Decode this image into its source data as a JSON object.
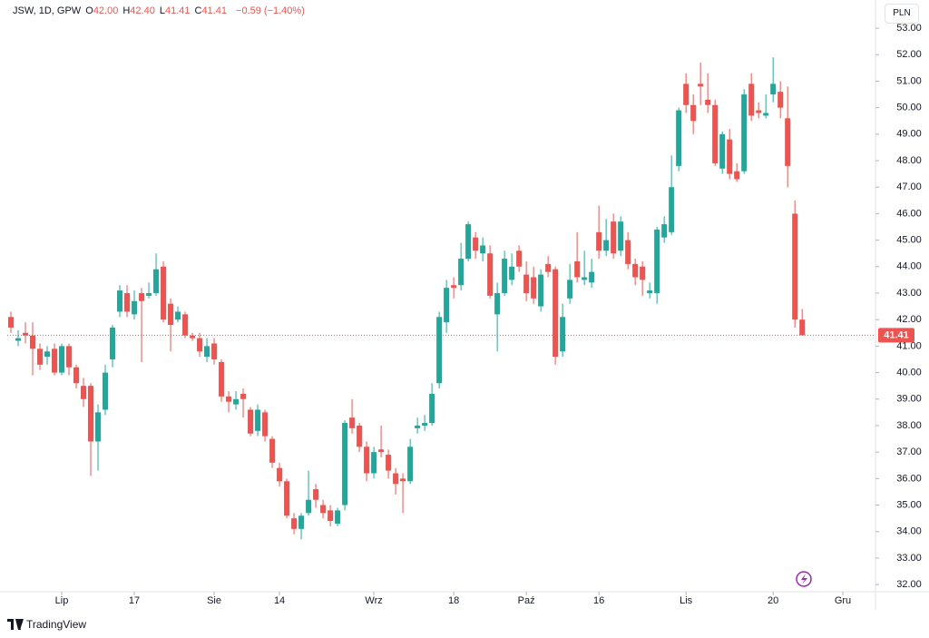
{
  "chart_data": {
    "type": "candlestick",
    "symbol": "JSW, 1D, GPW",
    "legend": [
      {
        "label": "O",
        "value": "42.00"
      },
      {
        "label": "H",
        "value": "42.40"
      },
      {
        "label": "L",
        "value": "41.41"
      },
      {
        "label": "C",
        "value": "41.41"
      }
    ],
    "change": "−0.59 (−1.40%)",
    "currency": "PLN",
    "brand": "TradingView",
    "up_color": "#26a69a",
    "down_color": "#ef5350",
    "open": [
      42.1,
      41.2,
      41.5,
      41.4,
      40.9,
      40.6,
      40.9,
      40.0,
      41.0,
      40.2,
      39.5,
      39.5,
      37.4,
      38.6,
      40.5,
      42.3,
      43.0,
      42.2,
      43.0,
      42.9,
      43.0,
      44.0,
      42.6,
      42.0,
      42.2,
      41.4,
      41.3,
      40.6,
      41.1,
      40.4,
      39.1,
      38.8,
      39.2,
      38.6,
      37.8,
      38.5,
      37.5,
      36.4,
      35.9,
      34.5,
      34.1,
      34.7,
      35.6,
      35.0,
      34.8,
      34.3,
      35.0,
      38.3,
      38.0,
      37.2,
      36.2,
      37.1,
      36.9,
      36.2,
      36.0,
      35.9,
      37.9,
      38.0,
      38.1,
      39.6,
      41.9,
      43.3,
      43.3,
      44.3,
      45.1,
      44.5,
      44.5,
      42.2,
      43.0,
      43.5,
      44.6,
      43.7,
      43.6,
      42.5,
      44.1,
      43.9,
      40.8,
      42.8,
      44.2,
      43.5,
      43.4,
      45.3,
      44.6,
      45.7,
      44.6,
      45.0,
      44.1,
      44.0,
      43.0,
      43.0,
      45.1,
      45.3,
      47.8,
      50.9,
      50.1,
      50.9,
      50.3,
      50.1,
      47.7,
      48.8,
      47.6,
      47.6,
      50.9,
      49.9,
      49.7,
      50.5,
      50.6,
      49.6,
      46.0,
      42.0
    ],
    "high": [
      42.3,
      41.6,
      41.9,
      41.9,
      41.1,
      41.0,
      41.1,
      41.1,
      41.1,
      40.3,
      39.8,
      39.6,
      38.8,
      40.3,
      41.8,
      43.3,
      43.3,
      43.1,
      43.2,
      43.4,
      44.5,
      44.2,
      42.8,
      42.5,
      42.3,
      41.5,
      41.5,
      41.3,
      41.3,
      40.5,
      39.3,
      39.3,
      39.4,
      38.7,
      38.8,
      38.6,
      37.6,
      36.6,
      36.0,
      34.7,
      34.7,
      36.3,
      35.8,
      35.2,
      35.0,
      34.9,
      38.2,
      39.0,
      38.1,
      37.4,
      37.2,
      38.0,
      37.1,
      36.4,
      36.2,
      37.5,
      38.3,
      38.4,
      39.6,
      42.3,
      43.5,
      43.6,
      44.9,
      45.7,
      45.3,
      45.1,
      44.8,
      43.4,
      44.6,
      44.5,
      44.8,
      44.2,
      44.0,
      43.9,
      44.4,
      44.0,
      42.6,
      44.1,
      45.3,
      44.6,
      44.3,
      46.3,
      45.8,
      46.0,
      45.9,
      45.3,
      44.3,
      44.2,
      43.4,
      45.5,
      45.9,
      48.2,
      50.0,
      51.3,
      50.5,
      51.7,
      51.3,
      50.3,
      49.1,
      49.2,
      47.9,
      50.7,
      51.3,
      50.2,
      50.5,
      51.9,
      51.0,
      50.8,
      46.5,
      42.4
    ],
    "low": [
      41.5,
      41.0,
      41.1,
      39.9,
      40.1,
      40.3,
      39.9,
      39.9,
      39.9,
      39.4,
      38.7,
      36.1,
      36.3,
      38.4,
      40.2,
      42.1,
      42.1,
      42.0,
      40.4,
      42.8,
      42.9,
      41.9,
      40.8,
      41.9,
      41.3,
      41.2,
      40.6,
      40.4,
      40.3,
      38.9,
      38.5,
      38.6,
      38.3,
      37.6,
      37.6,
      37.4,
      36.4,
      35.7,
      34.5,
      33.9,
      33.7,
      34.6,
      34.9,
      34.5,
      34.2,
      34.2,
      34.8,
      37.7,
      37.0,
      35.9,
      36.0,
      36.8,
      36.0,
      35.4,
      34.7,
      35.8,
      37.7,
      37.8,
      38.0,
      39.4,
      41.5,
      42.8,
      43.1,
      44.2,
      44.3,
      44.2,
      42.8,
      40.8,
      42.9,
      43.3,
      43.8,
      42.7,
      42.6,
      42.3,
      43.6,
      40.3,
      40.6,
      42.6,
      43.4,
      43.3,
      43.2,
      44.3,
      44.4,
      44.3,
      44.4,
      43.9,
      43.3,
      42.9,
      42.8,
      42.6,
      44.9,
      45.2,
      47.6,
      49.8,
      49.0,
      50.1,
      49.8,
      47.8,
      47.5,
      47.3,
      47.2,
      47.5,
      49.5,
      49.6,
      49.6,
      50.2,
      49.6,
      47.0,
      41.7,
      41.41
    ],
    "close": [
      41.7,
      41.3,
      41.4,
      40.9,
      40.3,
      40.8,
      40.0,
      41.0,
      40.2,
      39.6,
      39.0,
      37.4,
      38.5,
      40.0,
      41.7,
      43.1,
      42.3,
      42.7,
      42.7,
      43.0,
      43.9,
      42.0,
      41.8,
      42.3,
      41.4,
      41.3,
      40.8,
      41.0,
      40.5,
      39.1,
      38.9,
      39.0,
      39.0,
      37.7,
      38.6,
      37.6,
      36.6,
      35.9,
      34.6,
      34.1,
      34.6,
      35.2,
      35.2,
      34.7,
      34.4,
      34.8,
      38.1,
      37.9,
      37.2,
      36.2,
      37.0,
      37.0,
      36.3,
      35.8,
      35.9,
      37.2,
      38.0,
      38.1,
      39.2,
      42.1,
      43.2,
      43.2,
      44.3,
      45.6,
      44.6,
      44.8,
      42.9,
      43.0,
      44.3,
      44.0,
      44.0,
      43.0,
      42.8,
      43.7,
      43.8,
      40.6,
      42.1,
      43.5,
      43.6,
      43.6,
      43.8,
      44.6,
      45.0,
      44.5,
      45.7,
      44.1,
      43.6,
      43.5,
      43.1,
      45.4,
      45.6,
      47.0,
      49.9,
      50.1,
      49.5,
      50.8,
      50.1,
      47.9,
      49.0,
      47.5,
      47.3,
      50.5,
      49.7,
      49.8,
      49.8,
      50.9,
      50.0,
      47.8,
      42.0,
      41.41
    ],
    "xlim": [
      -0.5,
      119.1
    ],
    "xticks": [
      {
        "value": 7,
        "label": "Lip"
      },
      {
        "value": 17,
        "label": "17"
      },
      {
        "value": 28,
        "label": "Sie"
      },
      {
        "value": 37,
        "label": "14"
      },
      {
        "value": 50,
        "label": "Wrz"
      },
      {
        "value": 61,
        "label": "18"
      },
      {
        "value": 71,
        "label": "Paź"
      },
      {
        "value": 81,
        "label": "16"
      },
      {
        "value": 93,
        "label": "Lis"
      },
      {
        "value": 105,
        "label": "20"
      },
      {
        "value": 114.6,
        "label": "Gru"
      }
    ],
    "ylim": [
      31.73,
      53.79
    ],
    "yticks": [
      {
        "value": 32,
        "label": "32.00"
      },
      {
        "value": 33,
        "label": "33.00"
      },
      {
        "value": 34,
        "label": "34.00"
      },
      {
        "value": 35,
        "label": "35.00"
      },
      {
        "value": 36,
        "label": "36.00"
      },
      {
        "value": 37,
        "label": "37.00"
      },
      {
        "value": 38,
        "label": "38.00"
      },
      {
        "value": 39,
        "label": "39.00"
      },
      {
        "value": 40,
        "label": "40.00"
      },
      {
        "value": 41,
        "label": "41.00"
      },
      {
        "value": 42,
        "label": "42.00"
      },
      {
        "value": 43,
        "label": "43.00"
      },
      {
        "value": 44,
        "label": "44.00"
      },
      {
        "value": 45,
        "label": "45.00"
      },
      {
        "value": 46,
        "label": "46.00"
      },
      {
        "value": 47,
        "label": "47.00"
      },
      {
        "value": 48,
        "label": "48.00"
      },
      {
        "value": 49,
        "label": "49.00"
      },
      {
        "value": 50,
        "label": "50.00"
      },
      {
        "value": 51,
        "label": "51.00"
      },
      {
        "value": 52,
        "label": "52.00"
      },
      {
        "value": 53,
        "label": "53.00"
      }
    ],
    "grid": false
  }
}
